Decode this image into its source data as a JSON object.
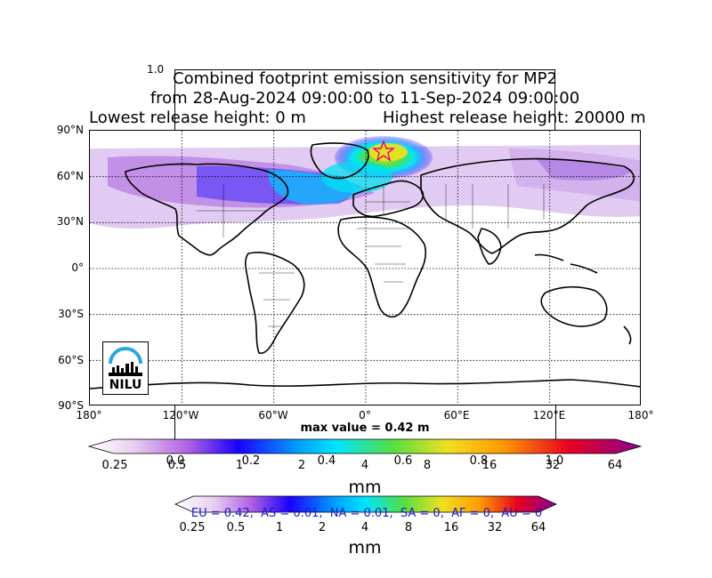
{
  "header": {
    "corner_label": "1.0",
    "title_line1": "Combined footprint emission sensitivity for MP2",
    "title_line2": "from 28-Aug-2024 09:00:00 to 11-Sep-2024 09:00:00",
    "title_line3_left": "Lowest release height: 0 m",
    "title_line3_right": "Highest release height: 20000 m"
  },
  "map": {
    "lat_labels": [
      "90°N",
      "60°N",
      "30°N",
      "0°",
      "30°S",
      "60°S",
      "90°S"
    ],
    "lon_labels": [
      "180°",
      "120°W",
      "60°W",
      "0°",
      "60°E",
      "120°E",
      "180°"
    ],
    "max_value_text": "max value = 0.42 m",
    "logo_text": "NILU",
    "release_marker": "star-marker"
  },
  "colorbar_top": {
    "log_ticks": [
      "0.25",
      "0.5",
      "1",
      "2",
      "4",
      "8",
      "16",
      "32",
      "64"
    ],
    "frac_ticks": [
      "0.0",
      "0.2",
      "0.4",
      "0.6",
      "0.8",
      "1.0"
    ],
    "unit": "mm"
  },
  "colorbar_bottom": {
    "log_ticks": [
      "0.25",
      "0.5",
      "1",
      "2",
      "4",
      "8",
      "16",
      "32",
      "64"
    ],
    "unit": "mm",
    "region_summary": "EU = 0.42,  AS = 0.01,  NA = 0.01,  SA = 0,  AF = 0,  AU = 0"
  },
  "colors": {
    "low": "#e8d0f0",
    "mid_blue": "#1a00ff",
    "cyan": "#00e5ff",
    "green": "#55e040",
    "yellow": "#f0e020",
    "orange": "#ff9900",
    "red": "#e60020",
    "max": "#8b0090",
    "region_text": "#1a1acc"
  }
}
